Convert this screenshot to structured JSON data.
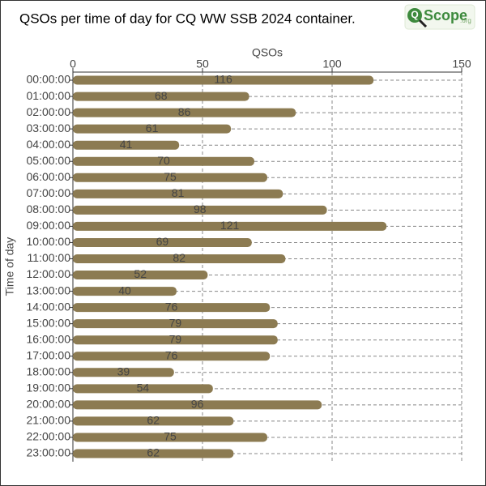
{
  "chart_data": {
    "type": "barh",
    "title": "QSOs per time of day for CQ WW SSB 2024 container.",
    "logo": {
      "mark": "Q",
      "text": "Scope",
      "suffix": ".org"
    },
    "x_label": "QSOs",
    "y_label": "Time of day",
    "categories": [
      "00:00:00",
      "01:00:00",
      "02:00:00",
      "03:00:00",
      "04:00:00",
      "05:00:00",
      "06:00:00",
      "07:00:00",
      "08:00:00",
      "09:00:00",
      "10:00:00",
      "11:00:00",
      "12:00:00",
      "13:00:00",
      "14:00:00",
      "15:00:00",
      "16:00:00",
      "17:00:00",
      "18:00:00",
      "19:00:00",
      "20:00:00",
      "21:00:00",
      "22:00:00",
      "23:00:00"
    ],
    "values": [
      116,
      68,
      86,
      61,
      41,
      70,
      75,
      81,
      98,
      121,
      69,
      82,
      52,
      40,
      76,
      79,
      79,
      76,
      39,
      54,
      96,
      62,
      75,
      62
    ],
    "color": "#8c7b52",
    "xlim": [
      0,
      150
    ],
    "xticks": [
      0,
      50,
      100,
      150
    ],
    "grid": true
  }
}
